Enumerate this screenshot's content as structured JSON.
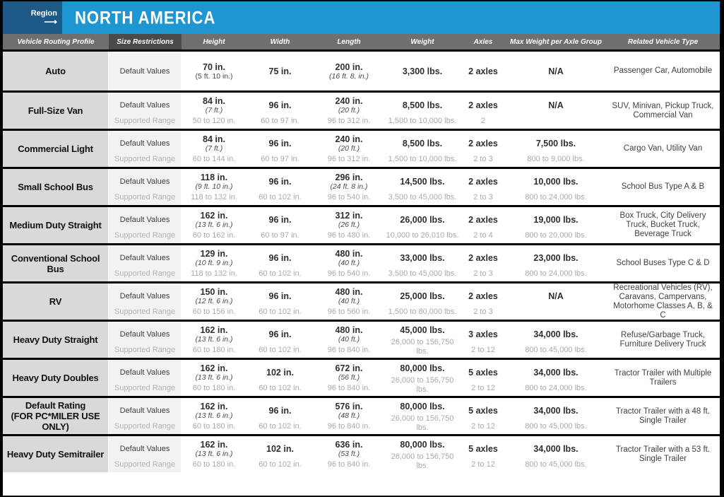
{
  "banner": {
    "region_label": "Region",
    "arrow": "⟶",
    "title": "NORTH AMERICA"
  },
  "columns": [
    "Vehicle Routing Profile",
    "Size Restrictions",
    "Height",
    "Width",
    "Length",
    "Weight",
    "Axles",
    "Max Weight per Axle Group",
    "Related Vehicle Type"
  ],
  "row_labels": {
    "default": "Default Values",
    "supported": "Supported Range"
  },
  "colors": {
    "navy": "#1e5a87",
    "blue": "#1e96d2",
    "header_gray": "#6f6f6f",
    "header_dark": "#4a4a4a",
    "profile_bg": "#d9d9d9",
    "size_bg": "#f2f2f2",
    "muted": "#a9a9a9",
    "border": "#000000"
  },
  "rows": [
    {
      "profile_lines": [
        "Auto"
      ],
      "default": {
        "height": "70 in.",
        "height_sub": "(5 ft. 10 in.)",
        "height_sub_italic": false,
        "width": "75 in.",
        "length": "200 in.",
        "length_sub": "(16 ft. 8. in.)",
        "weight": "3,300 lbs.",
        "axles": "2 axles",
        "max_weight": "N/A"
      },
      "supported": null,
      "related": "Passenger Car, Automobile"
    },
    {
      "profile_lines": [
        "Full-Size Van"
      ],
      "default": {
        "height": "84 in.",
        "height_sub": "(7 ft.)",
        "width": "96 in.",
        "length": "240 in.",
        "length_sub": "(20 ft.)",
        "weight": "8,500 lbs.",
        "axles": "2 axles",
        "max_weight": "N/A"
      },
      "supported": {
        "height": "50 to 120 in.",
        "width": "60 to 97 in.",
        "length": "96 to 312 in.",
        "weight": "1,500 to 10,000 lbs.",
        "axles": "2",
        "max_weight": ""
      },
      "related": "SUV, Minivan, Pickup Truck, Commercial Van"
    },
    {
      "profile_lines": [
        "Commercial Light"
      ],
      "default": {
        "height": "84 in.",
        "height_sub": "(7 ft.)",
        "width": "96 in.",
        "length": "240 in.",
        "length_sub": "(20 ft.)",
        "weight": "8,500 lbs.",
        "axles": "2 axles",
        "max_weight": "7,500 lbs."
      },
      "supported": {
        "height": "60 to 144 in.",
        "width": "60 to 97 in.",
        "length": "96 to 312 in.",
        "weight": "1,500 to 10,000 lbs.",
        "axles": "2 to 3",
        "max_weight": "800 to 9,000 lbs."
      },
      "related": "Cargo Van, Utility Van"
    },
    {
      "profile_lines": [
        "Small School Bus"
      ],
      "default": {
        "height": "118 in.",
        "height_sub": "(9 ft. 10 in.)",
        "width": "96 in.",
        "length": "296 in.",
        "length_sub": "(24 ft. 8 in.)",
        "weight": "14,500 lbs.",
        "axles": "2 axles",
        "max_weight": "10,000 lbs."
      },
      "supported": {
        "height": "118 to 132 in.",
        "width": "60 to 102 in.",
        "length": "96 to 540 in.",
        "weight": "3,500 to 45,000 lbs.",
        "axles": "2 to 3",
        "max_weight": "800 to 24,000 lbs."
      },
      "related": "School Bus Type A & B"
    },
    {
      "profile_lines": [
        "Medium Duty Straight"
      ],
      "default": {
        "height": "162 in.",
        "height_sub": "(13 ft. 6 in.)",
        "width": "96 in.",
        "length": "312 in.",
        "length_sub": "(26 ft.)",
        "weight": "26,000 lbs.",
        "axles": "2 axles",
        "max_weight": "19,000 lbs."
      },
      "supported": {
        "height": "60 to 162 in.",
        "width": "60 to 97 in.",
        "length": "96 to 480 in.",
        "weight": "10,000 to 26,010 lbs.",
        "axles": "2 to 4",
        "max_weight": "800 to 20,000 lbs."
      },
      "related": "Box Truck, City Delivery Truck, Bucket Truck, Beverage Truck"
    },
    {
      "profile_lines": [
        "Conventional School Bus"
      ],
      "default": {
        "height": "129 in.",
        "height_sub": "(10 ft. 9 in.)",
        "width": "96 in.",
        "length": "480 in.",
        "length_sub": "(40 ft.)",
        "weight": "33,000 lbs.",
        "axles": "2 axles",
        "max_weight": "23,000 lbs."
      },
      "supported": {
        "height": "118 to 132 in.",
        "width": "60 to 102 in.",
        "length": "96 to 540 in.",
        "weight": "3,500 to 45,000 lbs.",
        "axles": "2 to 3",
        "max_weight": "800 to 24,000 lbs."
      },
      "related": "School Buses Type C & D"
    },
    {
      "profile_lines": [
        "RV"
      ],
      "default": {
        "height": "150 in.",
        "height_sub": "(12 ft. 6 in.)",
        "width": "96 in.",
        "length": "480 in.",
        "length_sub": "(40 ft.)",
        "weight": "25,000 lbs.",
        "axles": "2 axles",
        "max_weight": "N/A"
      },
      "supported": {
        "height": "60 to 156 in.",
        "width": "60 to 102 in.",
        "length": "96 to 560 in.",
        "weight": "1,500 to 80,000 lbs.",
        "axles": "2 to 3",
        "max_weight": ""
      },
      "related": "Recreational Vehicles (RV), Caravans, Campervans, Motorhome Classes A, B, & C"
    },
    {
      "profile_lines": [
        "Heavy Duty Straight"
      ],
      "default": {
        "height": "162 in.",
        "height_sub": "(13 ft. 6 in.)",
        "width": "96 in.",
        "length": "480 in.",
        "length_sub": "(40 ft.)",
        "weight": "45,000 lbs.",
        "axles": "3 axles",
        "max_weight": "34,000 lbs."
      },
      "supported": {
        "height": "60 to 180 in.",
        "width": "60 to 102 in.",
        "length": "96 to 840 in.",
        "weight": "26,000 to 156,750 lbs.",
        "axles": "2 to 12",
        "max_weight": "800 to 45,000 lbs."
      },
      "related": "Refuse/Garbage Truck, Furniture Delivery Truck"
    },
    {
      "profile_lines": [
        "Heavy Duty Doubles"
      ],
      "default": {
        "height": "162 in.",
        "height_sub": "(13 ft. 6 in.)",
        "width": "102 in.",
        "length": "672 in.",
        "length_sub": "(56 ft.)",
        "weight": "80,000 lbs.",
        "axles": "5 axles",
        "max_weight": "34,000 lbs."
      },
      "supported": {
        "height": "60 to 180 in.",
        "width": "60 to 102 in.",
        "length": "96 to 840 in.",
        "weight": "26,000 to 156,750 lbs.",
        "axles": "2 to 12",
        "max_weight": "800 to 24,000 lbs."
      },
      "related": "Tractor Trailer with Multiple Trailers"
    },
    {
      "profile_lines": [
        "Default Rating",
        "(FOR PC*MILER USE ONLY)"
      ],
      "default": {
        "height": "162 in.",
        "height_sub": "(13 ft. 6 in.)",
        "width": "96 in.",
        "length": "576 in.",
        "length_sub": "(48 ft.)",
        "weight": "80,000 lbs.",
        "axles": "5 axles",
        "max_weight": "34,000 lbs."
      },
      "supported": {
        "height": "60 to 180 in.",
        "width": "60 to 102 in.",
        "length": "96 to 840 in.",
        "weight": "26,000 to 156,750 lbs.",
        "axles": "2 to 12",
        "max_weight": "800 to 45,000 lbs."
      },
      "related": "Tractor Trailer with a 48 ft. Single Trailer"
    },
    {
      "profile_lines": [
        "Heavy Duty Semitrailer"
      ],
      "default": {
        "height": "162 in.",
        "height_sub": "(13 ft. 6 in.)",
        "width": "102 in.",
        "length": "636 in.",
        "length_sub": "(53 ft.)",
        "weight": "80,000 lbs.",
        "axles": "5 axles",
        "max_weight": "34,000 lbs."
      },
      "supported": {
        "height": "60 to 180 in.",
        "width": "60 to 102 in.",
        "length": "96 to 840 in.",
        "weight": "26,000 to 156,750 lbs.",
        "axles": "2 to 12",
        "max_weight": "800 to 45,000 lbs."
      },
      "related": "Tractor Trailer with a 53 ft. Single Trailer"
    }
  ]
}
